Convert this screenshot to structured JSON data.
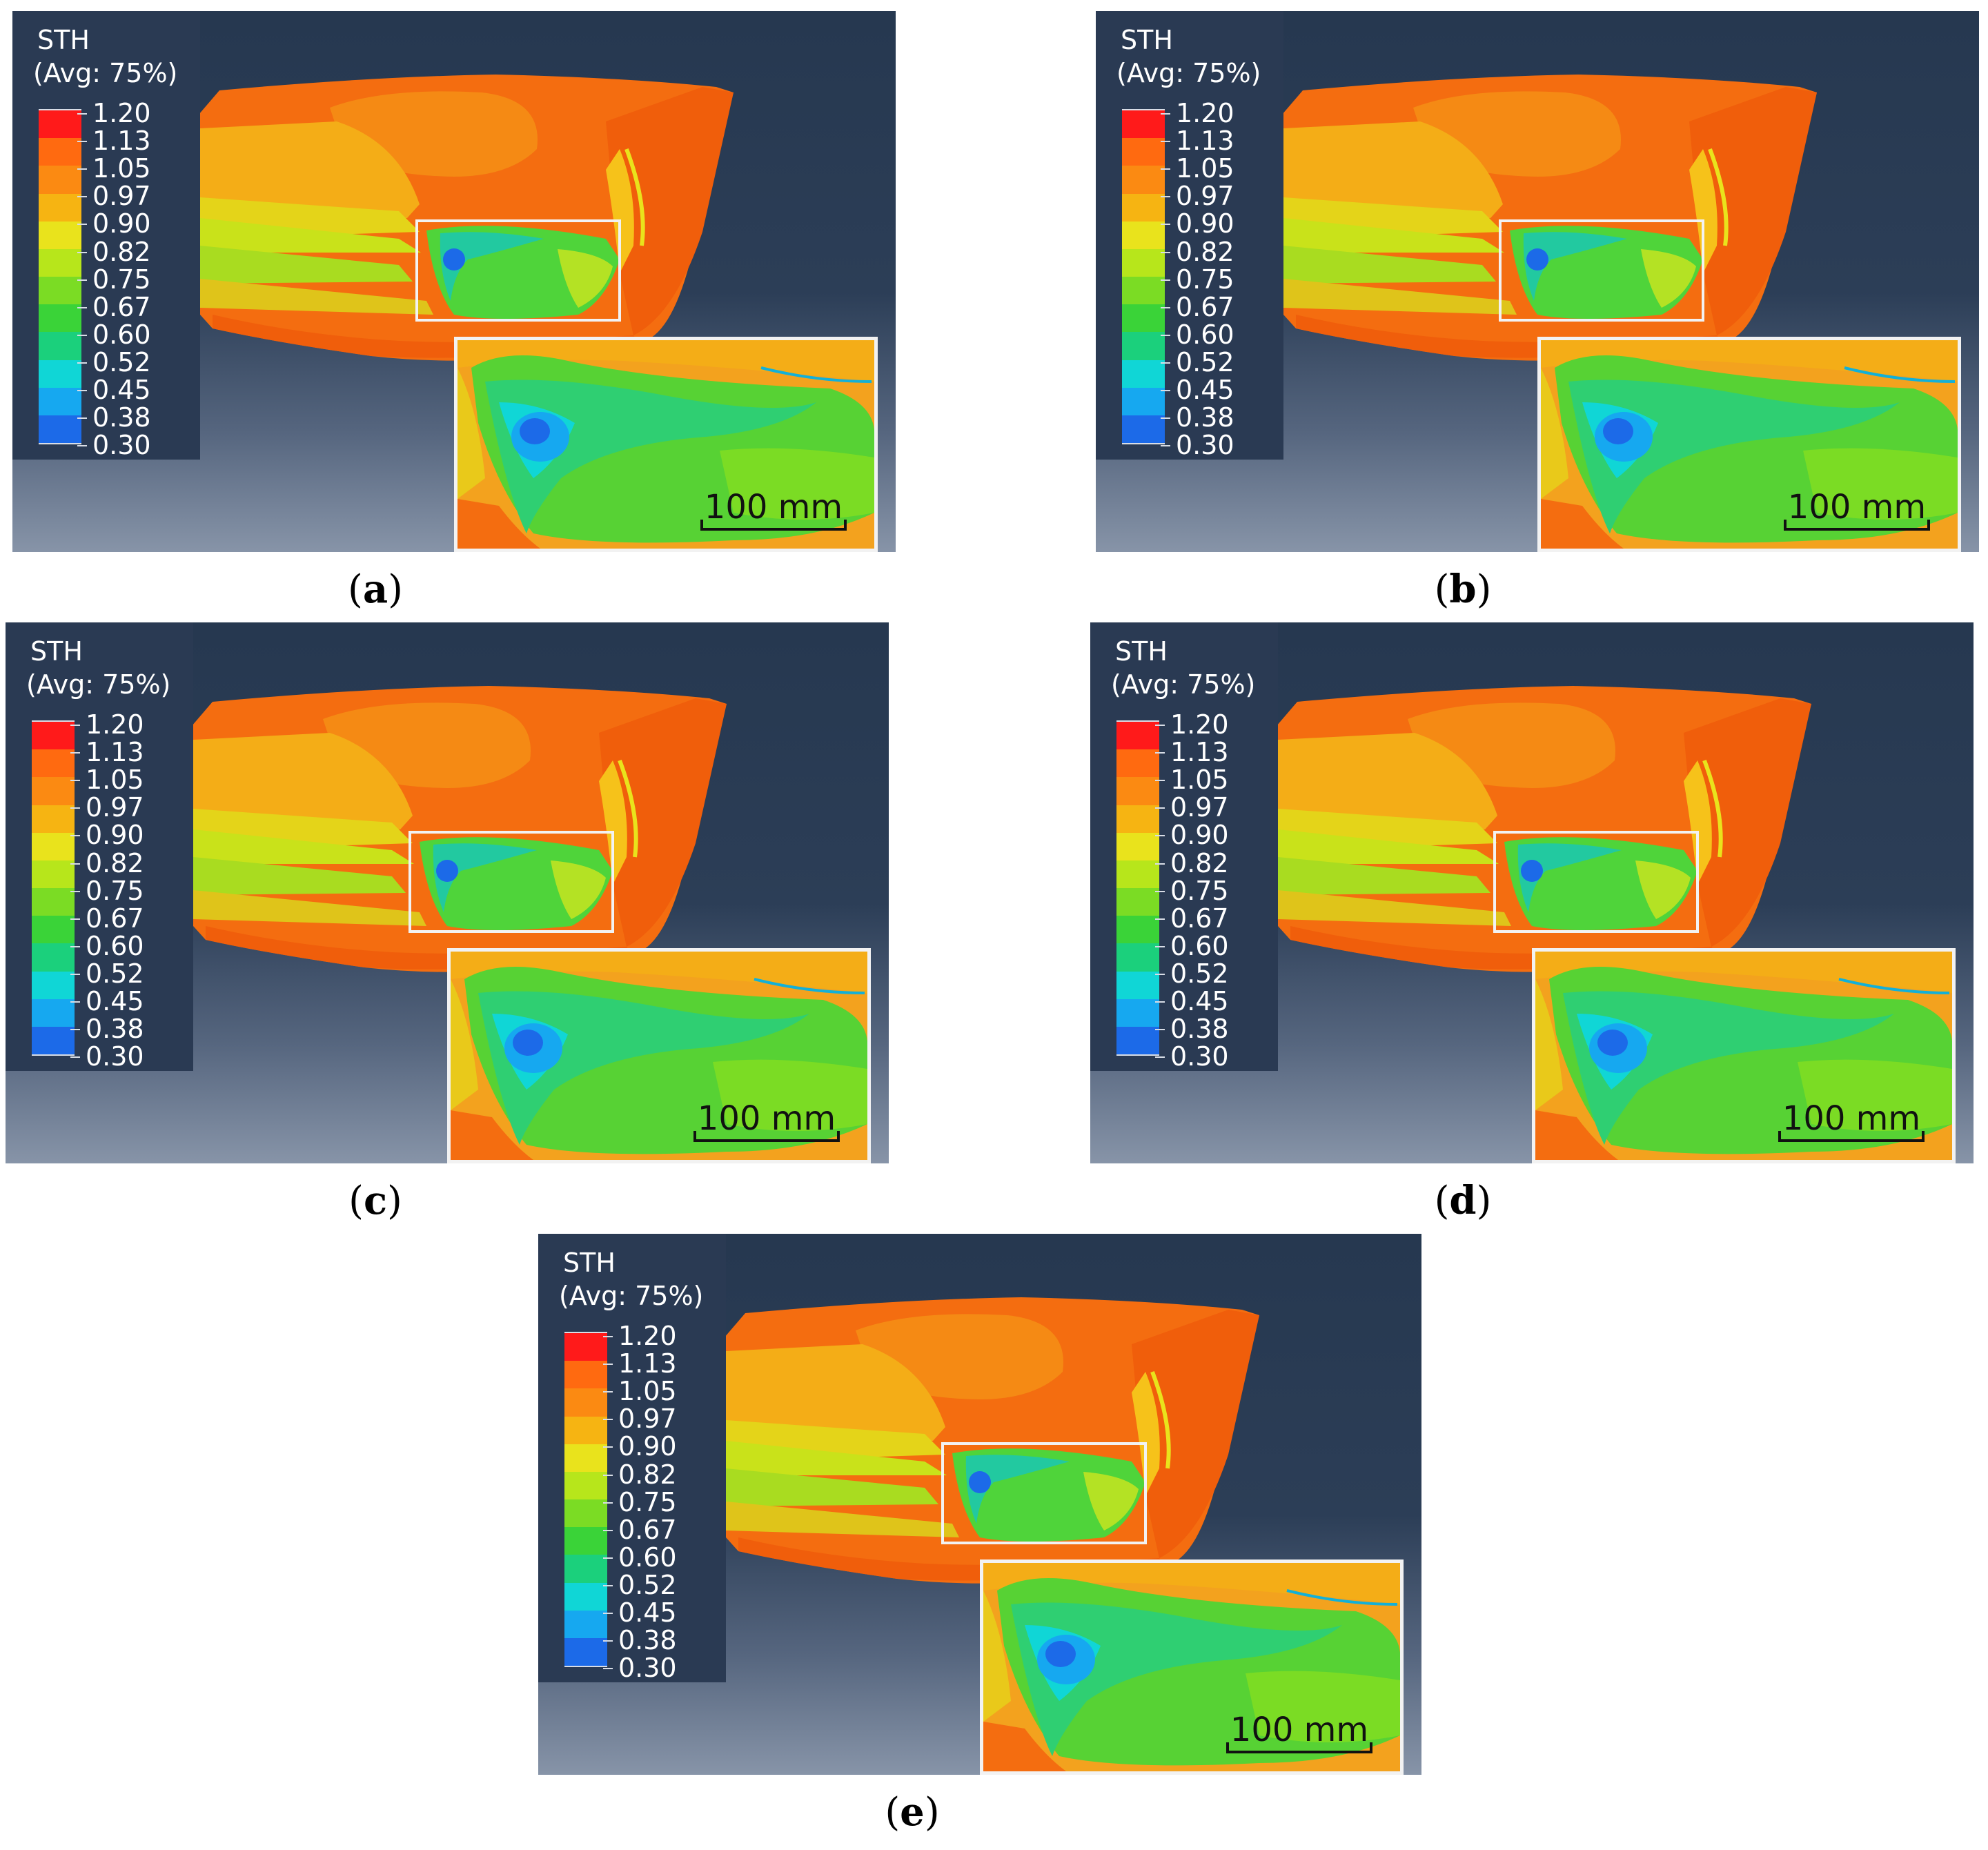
{
  "legend": {
    "title": "STH",
    "subtitle": "(Avg: 75%)",
    "values": [
      "1.20",
      "1.13",
      "1.05",
      "0.97",
      "0.90",
      "0.82",
      "0.75",
      "0.67",
      "0.60",
      "0.52",
      "0.45",
      "0.38",
      "0.30"
    ],
    "colors": [
      "#ff1a1a",
      "#ff6a10",
      "#fb8a12",
      "#f6b412",
      "#e9e31c",
      "#b7e61b",
      "#7bdc24",
      "#3ad338",
      "#1bd07c",
      "#10d6d6",
      "#16a8f0",
      "#1c6ae8",
      "#1414e0"
    ]
  },
  "scalebar_label": "100 mm",
  "panels": [
    {
      "id": "a",
      "caption_letter": "a"
    },
    {
      "id": "b",
      "caption_letter": "b"
    },
    {
      "id": "c",
      "caption_letter": "c"
    },
    {
      "id": "d",
      "caption_letter": "d"
    },
    {
      "id": "e",
      "caption_letter": "e"
    }
  ]
}
